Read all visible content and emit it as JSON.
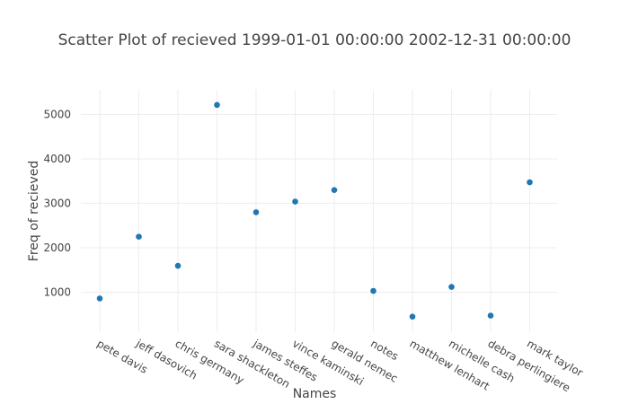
{
  "chart_data": {
    "type": "scatter",
    "title": "Scatter Plot of recieved 1999-01-01 00:00:00 2002-12-31 00:00:00",
    "xlabel": "Names",
    "ylabel": "Freq of recieved",
    "categories": [
      "pete davis",
      "jeff dasovich",
      "chris germany",
      "sara shackleton",
      "james steffes",
      "vince kaminski",
      "gerald nemec",
      "notes",
      "matthew lenhart",
      "michelle cash",
      "debra perlingiere",
      "mark taylor"
    ],
    "values": [
      860,
      2250,
      1595,
      5215,
      2800,
      3040,
      3300,
      1030,
      450,
      1120,
      475,
      3475
    ],
    "y_ticks": [
      1000,
      2000,
      3000,
      4000,
      5000
    ],
    "ylim": [
      0,
      5500
    ],
    "grid": true,
    "marker_color": "#1f77b4"
  }
}
